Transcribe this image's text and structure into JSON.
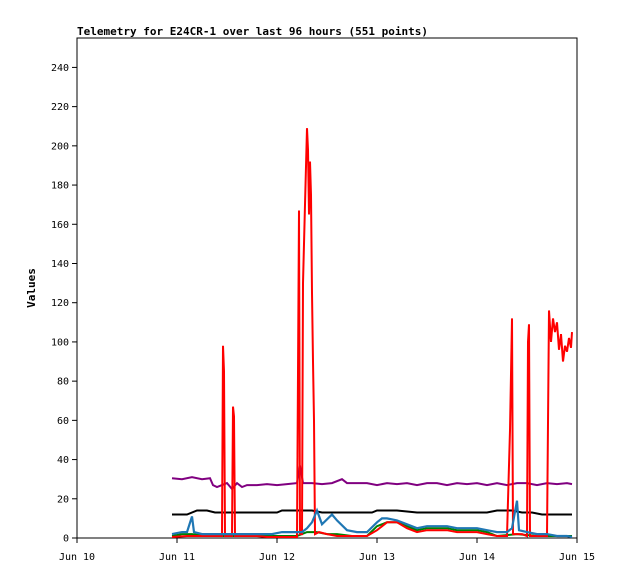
{
  "chart_data": {
    "type": "line",
    "title": "Telemetry for E24CR-1 over last 96 hours (551 points)",
    "xlabel": "",
    "ylabel": "Values",
    "xlim": [
      0,
      5
    ],
    "ylim": [
      0,
      255
    ],
    "x_tick_values": [
      0,
      1,
      2,
      3,
      4,
      5
    ],
    "x_tick_labels": [
      "Jun 10",
      "Jun 11",
      "Jun 12",
      "Jun 13",
      "Jun 14",
      "Jun 15"
    ],
    "y_ticks": [
      0,
      20,
      40,
      60,
      80,
      100,
      120,
      140,
      160,
      180,
      200,
      220,
      240
    ],
    "grid": false,
    "legend": "none",
    "x_unit": "days since Jun 10 00:00",
    "series": [
      {
        "color": "#800080",
        "points": [
          [
            0.95,
            30.5
          ],
          [
            1.05,
            30
          ],
          [
            1.15,
            31
          ],
          [
            1.25,
            30
          ],
          [
            1.33,
            30.5
          ],
          [
            1.36,
            27
          ],
          [
            1.4,
            26
          ],
          [
            1.45,
            27
          ],
          [
            1.5,
            28
          ],
          [
            1.55,
            25
          ],
          [
            1.6,
            28
          ],
          [
            1.65,
            26
          ],
          [
            1.7,
            27
          ],
          [
            1.8,
            27
          ],
          [
            1.9,
            27.5
          ],
          [
            2.0,
            27
          ],
          [
            2.1,
            27.5
          ],
          [
            2.2,
            28
          ],
          [
            2.23,
            37
          ],
          [
            2.26,
            28
          ],
          [
            2.35,
            28
          ],
          [
            2.45,
            27.5
          ],
          [
            2.55,
            28
          ],
          [
            2.65,
            30
          ],
          [
            2.7,
            28
          ],
          [
            2.8,
            28
          ],
          [
            2.9,
            28
          ],
          [
            3.0,
            27
          ],
          [
            3.1,
            28
          ],
          [
            3.2,
            27.5
          ],
          [
            3.3,
            28
          ],
          [
            3.4,
            27
          ],
          [
            3.5,
            28
          ],
          [
            3.6,
            28
          ],
          [
            3.7,
            27
          ],
          [
            3.8,
            28
          ],
          [
            3.9,
            27.5
          ],
          [
            4.0,
            28
          ],
          [
            4.1,
            27
          ],
          [
            4.2,
            28
          ],
          [
            4.3,
            27
          ],
          [
            4.4,
            28
          ],
          [
            4.5,
            28
          ],
          [
            4.6,
            27
          ],
          [
            4.7,
            28
          ],
          [
            4.8,
            27.5
          ],
          [
            4.9,
            28
          ],
          [
            4.95,
            27.5
          ]
        ]
      },
      {
        "color": "#000000",
        "points": [
          [
            0.95,
            12
          ],
          [
            1.1,
            12
          ],
          [
            1.2,
            14
          ],
          [
            1.3,
            14
          ],
          [
            1.38,
            13
          ],
          [
            1.45,
            13
          ],
          [
            1.6,
            13
          ],
          [
            1.8,
            13
          ],
          [
            2.0,
            13
          ],
          [
            2.05,
            14
          ],
          [
            2.2,
            14
          ],
          [
            2.35,
            14
          ],
          [
            2.45,
            13
          ],
          [
            2.6,
            13
          ],
          [
            2.8,
            13
          ],
          [
            2.95,
            13
          ],
          [
            3.0,
            14
          ],
          [
            3.2,
            14
          ],
          [
            3.4,
            13
          ],
          [
            3.6,
            13
          ],
          [
            3.8,
            13
          ],
          [
            4.0,
            13
          ],
          [
            4.1,
            13
          ],
          [
            4.2,
            14
          ],
          [
            4.35,
            14
          ],
          [
            4.45,
            13
          ],
          [
            4.55,
            13
          ],
          [
            4.65,
            12
          ],
          [
            4.8,
            12
          ],
          [
            4.95,
            12
          ]
        ]
      },
      {
        "color": "#008000",
        "points": [
          [
            0.95,
            1
          ],
          [
            1.05,
            2
          ],
          [
            1.15,
            2
          ],
          [
            1.3,
            1
          ],
          [
            1.45,
            1
          ],
          [
            1.6,
            1
          ],
          [
            1.8,
            1
          ],
          [
            2.0,
            1
          ],
          [
            2.2,
            1
          ],
          [
            2.3,
            3
          ],
          [
            2.4,
            3
          ],
          [
            2.5,
            2
          ],
          [
            2.6,
            2
          ],
          [
            2.75,
            1
          ],
          [
            2.9,
            1
          ],
          [
            3.0,
            6
          ],
          [
            3.1,
            8
          ],
          [
            3.2,
            8
          ],
          [
            3.3,
            6
          ],
          [
            3.4,
            4
          ],
          [
            3.5,
            5
          ],
          [
            3.6,
            5
          ],
          [
            3.7,
            5
          ],
          [
            3.8,
            4
          ],
          [
            3.9,
            4
          ],
          [
            4.0,
            4
          ],
          [
            4.1,
            3
          ],
          [
            4.2,
            1
          ],
          [
            4.4,
            2
          ],
          [
            4.6,
            1
          ],
          [
            4.8,
            1
          ],
          [
            4.95,
            1
          ]
        ]
      },
      {
        "color": "#ff0000",
        "points": [
          [
            0.95,
            0.5
          ],
          [
            1.1,
            1
          ],
          [
            1.2,
            1
          ],
          [
            1.3,
            1
          ],
          [
            1.4,
            1
          ],
          [
            1.45,
            1
          ],
          [
            1.46,
            98
          ],
          [
            1.47,
            85
          ],
          [
            1.48,
            1
          ],
          [
            1.55,
            1
          ],
          [
            1.56,
            67
          ],
          [
            1.57,
            62
          ],
          [
            1.58,
            1
          ],
          [
            1.7,
            1
          ],
          [
            1.8,
            1
          ],
          [
            1.9,
            0.5
          ],
          [
            2.0,
            0.5
          ],
          [
            2.1,
            0.5
          ],
          [
            2.2,
            0.5
          ],
          [
            2.21,
            84
          ],
          [
            2.22,
            167
          ],
          [
            2.23,
            2
          ],
          [
            2.25,
            2
          ],
          [
            2.26,
            130
          ],
          [
            2.28,
            170
          ],
          [
            2.3,
            209
          ],
          [
            2.31,
            198
          ],
          [
            2.32,
            165
          ],
          [
            2.33,
            192
          ],
          [
            2.34,
            175
          ],
          [
            2.35,
            125
          ],
          [
            2.36,
            90
          ],
          [
            2.37,
            60
          ],
          [
            2.38,
            2
          ],
          [
            2.42,
            3
          ],
          [
            2.5,
            2
          ],
          [
            2.6,
            1
          ],
          [
            2.7,
            1
          ],
          [
            2.8,
            1
          ],
          [
            2.9,
            1
          ],
          [
            3.0,
            4
          ],
          [
            3.1,
            8
          ],
          [
            3.2,
            8
          ],
          [
            3.3,
            5
          ],
          [
            3.4,
            3
          ],
          [
            3.5,
            4
          ],
          [
            3.6,
            4
          ],
          [
            3.7,
            4
          ],
          [
            3.8,
            3
          ],
          [
            3.9,
            3
          ],
          [
            4.0,
            3
          ],
          [
            4.1,
            2
          ],
          [
            4.2,
            1
          ],
          [
            4.3,
            1
          ],
          [
            4.33,
            55
          ],
          [
            4.35,
            112
          ],
          [
            4.36,
            2
          ],
          [
            4.45,
            2
          ],
          [
            4.5,
            1
          ],
          [
            4.51,
            100
          ],
          [
            4.52,
            109
          ],
          [
            4.53,
            1
          ],
          [
            4.6,
            1
          ],
          [
            4.7,
            1
          ],
          [
            4.72,
            116
          ],
          [
            4.74,
            100
          ],
          [
            4.76,
            112
          ],
          [
            4.78,
            105
          ],
          [
            4.8,
            110
          ],
          [
            4.82,
            96
          ],
          [
            4.84,
            104
          ],
          [
            4.86,
            90
          ],
          [
            4.88,
            98
          ],
          [
            4.9,
            95
          ],
          [
            4.92,
            102
          ],
          [
            4.94,
            97
          ],
          [
            4.95,
            105
          ]
        ]
      },
      {
        "color": "#1f77b4",
        "points": [
          [
            0.95,
            2
          ],
          [
            1.05,
            3
          ],
          [
            1.1,
            3
          ],
          [
            1.15,
            11
          ],
          [
            1.17,
            3
          ],
          [
            1.25,
            2
          ],
          [
            1.35,
            2
          ],
          [
            1.45,
            2
          ],
          [
            1.55,
            2
          ],
          [
            1.65,
            2
          ],
          [
            1.75,
            2
          ],
          [
            1.85,
            2
          ],
          [
            1.95,
            2
          ],
          [
            2.05,
            3
          ],
          [
            2.15,
            3
          ],
          [
            2.25,
            3
          ],
          [
            2.3,
            5
          ],
          [
            2.35,
            8
          ],
          [
            2.4,
            14
          ],
          [
            2.45,
            7
          ],
          [
            2.55,
            12
          ],
          [
            2.6,
            9
          ],
          [
            2.7,
            4
          ],
          [
            2.8,
            3
          ],
          [
            2.9,
            3
          ],
          [
            3.0,
            8
          ],
          [
            3.05,
            10
          ],
          [
            3.1,
            10
          ],
          [
            3.2,
            9
          ],
          [
            3.3,
            7
          ],
          [
            3.4,
            5
          ],
          [
            3.5,
            6
          ],
          [
            3.6,
            6
          ],
          [
            3.7,
            6
          ],
          [
            3.8,
            5
          ],
          [
            3.9,
            5
          ],
          [
            4.0,
            5
          ],
          [
            4.1,
            4
          ],
          [
            4.2,
            3
          ],
          [
            4.3,
            3
          ],
          [
            4.35,
            5
          ],
          [
            4.4,
            19
          ],
          [
            4.42,
            4
          ],
          [
            4.5,
            3
          ],
          [
            4.6,
            2
          ],
          [
            4.7,
            2
          ],
          [
            4.8,
            1
          ],
          [
            4.9,
            1
          ],
          [
            4.95,
            0.5
          ]
        ]
      }
    ]
  }
}
